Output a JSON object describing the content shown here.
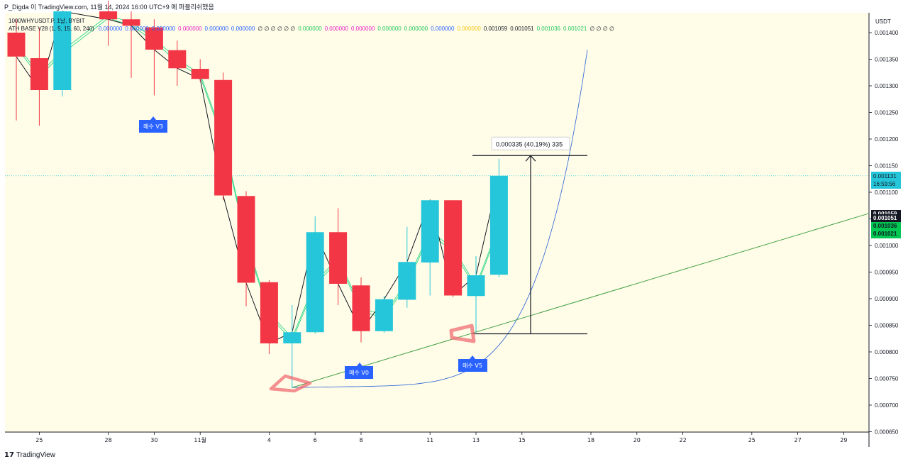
{
  "header": {
    "publish_line": "P_Digda 이 TradingView.com, 11월 14, 2024 16:00 UTC+9 에 퍼블리쉬했음",
    "symbol_line": "1000WHYUSDT.P, 1날, BYBIT",
    "indicator_line": "ATH BASE V28 (1, 5, 15, 60, 240)",
    "indicator_values": [
      {
        "text": "0.000000",
        "color": "#2962ff"
      },
      {
        "text": "0.000000",
        "color": "#2962ff"
      },
      {
        "text": "0.000000",
        "color": "#2962ff"
      },
      {
        "text": "0.000000",
        "color": "#e91ec6"
      },
      {
        "text": "0.000000",
        "color": "#2962ff"
      },
      {
        "text": "0.000000",
        "color": "#2962ff"
      },
      {
        "text": "∅ ∅ ∅ ∅ ∅ ∅",
        "color": "#131722"
      },
      {
        "text": "0.000000",
        "color": "#22c55e"
      },
      {
        "text": "0.000000",
        "color": "#e91ec6"
      },
      {
        "text": "0.000000",
        "color": "#e91ec6"
      },
      {
        "text": "0.000000",
        "color": "#22c55e"
      },
      {
        "text": "0.000000",
        "color": "#22c55e"
      },
      {
        "text": "0.000000",
        "color": "#2962ff"
      },
      {
        "text": "0.000000",
        "color": "#f5c518"
      },
      {
        "text": "0.001059",
        "color": "#131722"
      },
      {
        "text": "0.001051",
        "color": "#131722"
      },
      {
        "text": "0.001036",
        "color": "#22c55e"
      },
      {
        "text": "0.001021",
        "color": "#22c55e"
      },
      {
        "text": "∅ ∅ ∅ ∅",
        "color": "#131722"
      }
    ]
  },
  "axis": {
    "currency": "USDT",
    "current_price": "0.001131",
    "countdown": "16:59:56",
    "tags": [
      {
        "text": "0.001059",
        "bg": "#131722",
        "fg": "#ffffff"
      },
      {
        "text": "0.001051",
        "bg": "#131722",
        "fg": "#ffffff"
      },
      {
        "text": "0.001036",
        "bg": "#00c853",
        "fg": "#131722"
      },
      {
        "text": "0.001021",
        "bg": "#00c853",
        "fg": "#131722"
      }
    ]
  },
  "footer": {
    "brand": "TradingView",
    "logo": "17"
  },
  "annotations": {
    "measure_label": "0.000335 (40.19%) 335",
    "buy_labels": [
      "매수 V3",
      "매수 V0",
      "매수 V5"
    ]
  },
  "chart_data": {
    "type": "candlestick",
    "interval": "1 day",
    "title": "",
    "ylim": [
      0.00065,
      0.00142
    ],
    "y_ticks": [
      "0.001400",
      "0.001350",
      "0.001300",
      "0.001250",
      "0.001200",
      "0.001150",
      "0.001100",
      "0.001050",
      "0.001000",
      "0.000950",
      "0.000900",
      "0.000850",
      "0.000800",
      "0.000750",
      "0.000700",
      "0.000650"
    ],
    "x_ticks": [
      {
        "label": "25",
        "day": 0
      },
      {
        "label": "28",
        "day": 3
      },
      {
        "label": "30",
        "day": 5
      },
      {
        "label": "11월",
        "day": 7
      },
      {
        "label": "4",
        "day": 10
      },
      {
        "label": "6",
        "day": 12
      },
      {
        "label": "8",
        "day": 14
      },
      {
        "label": "11",
        "day": 17
      },
      {
        "label": "13",
        "day": 19
      },
      {
        "label": "15",
        "day": 21
      },
      {
        "label": "18",
        "day": 24
      },
      {
        "label": "20",
        "day": 26
      },
      {
        "label": "22",
        "day": 28
      },
      {
        "label": "25",
        "day": 31
      },
      {
        "label": "27",
        "day": 33
      },
      {
        "label": "29",
        "day": 35
      }
    ],
    "candles": [
      {
        "date": "10-24",
        "open": 0.0014,
        "high": 0.001425,
        "low": 0.001235,
        "close": 0.001355
      },
      {
        "date": "10-25",
        "open": 0.001352,
        "high": 0.00141,
        "low": 0.001225,
        "close": 0.001292
      },
      {
        "date": "10-26",
        "open": 0.001292,
        "high": 0.00144,
        "low": 0.00128,
        "close": 0.00144
      },
      {
        "date": "10-28",
        "open": 0.00144,
        "high": 0.00146,
        "low": 0.001375,
        "close": 0.001425
      },
      {
        "date": "10-29",
        "open": 0.001425,
        "high": 0.00144,
        "low": 0.001315,
        "close": 0.001413
      },
      {
        "date": "10-30",
        "open": 0.00141,
        "high": 0.001425,
        "low": 0.001282,
        "close": 0.001368
      },
      {
        "date": "10-31",
        "open": 0.001367,
        "high": 0.001385,
        "low": 0.0013,
        "close": 0.001333
      },
      {
        "date": "11-01",
        "open": 0.001332,
        "high": 0.00135,
        "low": 0.001308,
        "close": 0.001313
      },
      {
        "date": "11-02",
        "open": 0.001311,
        "high": 0.001325,
        "low": 0.001085,
        "close": 0.001094
      },
      {
        "date": "11-03",
        "open": 0.001093,
        "high": 0.001102,
        "low": 0.000886,
        "close": 0.00093
      },
      {
        "date": "11-04",
        "open": 0.000931,
        "high": 0.000935,
        "low": 0.000796,
        "close": 0.000816
      },
      {
        "date": "11-05",
        "open": 0.000816,
        "high": 0.000888,
        "low": 0.000733,
        "close": 0.000837
      },
      {
        "date": "11-06",
        "open": 0.000837,
        "high": 0.001055,
        "low": 0.000834,
        "close": 0.001025
      },
      {
        "date": "11-07",
        "open": 0.001025,
        "high": 0.00107,
        "low": 0.000888,
        "close": 0.000928
      },
      {
        "date": "11-08",
        "open": 0.000925,
        "high": 0.00094,
        "low": 0.000818,
        "close": 0.000839
      },
      {
        "date": "11-09",
        "open": 0.000839,
        "high": 0.000905,
        "low": 0.000836,
        "close": 0.000899
      },
      {
        "date": "11-10",
        "open": 0.000898,
        "high": 0.001035,
        "low": 0.000883,
        "close": 0.000969
      },
      {
        "date": "11-11",
        "open": 0.000968,
        "high": 0.001085,
        "low": 0.000906,
        "close": 0.001085
      },
      {
        "date": "11-12",
        "open": 0.001085,
        "high": 0.001085,
        "low": 0.000903,
        "close": 0.000906
      },
      {
        "date": "11-13",
        "open": 0.000905,
        "high": 0.00098,
        "low": 0.000837,
        "close": 0.000944
      },
      {
        "date": "11-14",
        "open": 0.000945,
        "high": 0.001163,
        "low": 0.00094,
        "close": 0.001131
      }
    ],
    "trendline_green": {
      "from": {
        "day": 11,
        "price": 0.000733
      },
      "to": {
        "day": 37,
        "price": 0.001072
      }
    },
    "measure": {
      "low": 0.000834,
      "high": 0.001169,
      "change": "0.000335",
      "pct": "40.19%",
      "ticks": "335"
    }
  }
}
